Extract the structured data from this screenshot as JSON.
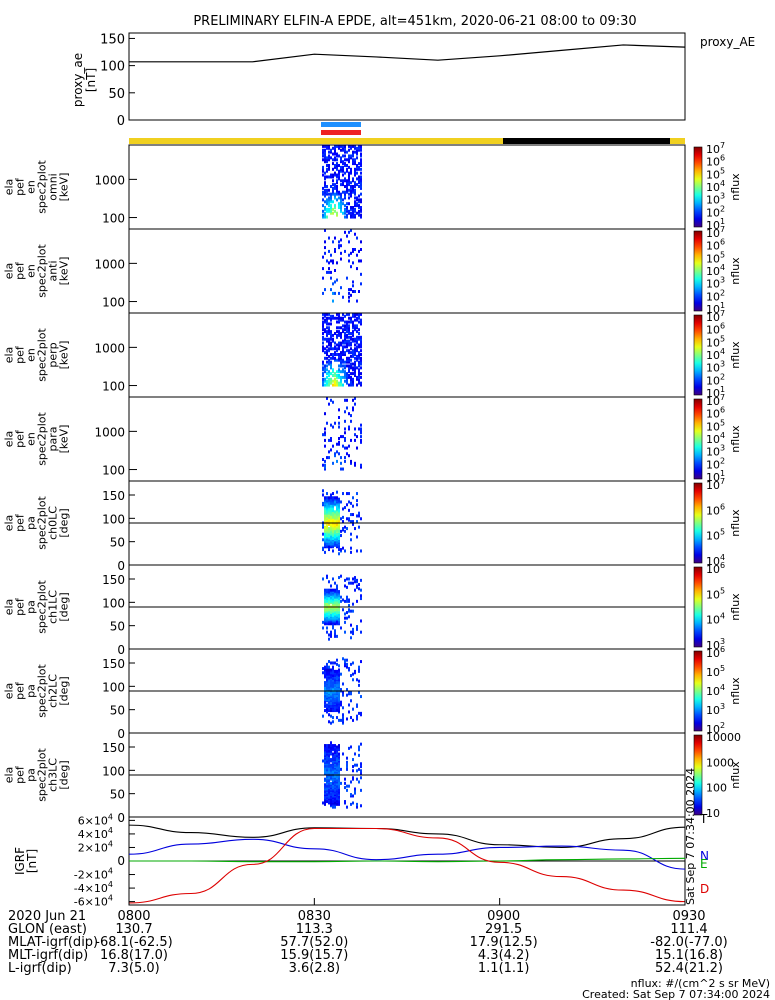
{
  "title": "PRELIMINARY ELFIN-A EPDE, alt=451km, 2020-06-21 08:00 to 09:30",
  "chart_data": [
    {
      "type": "line",
      "name": "proxy_ae",
      "ylabel": "proxy_ae\n[nT]",
      "legend": "proxy_AE",
      "ylim": [
        0,
        160
      ],
      "yticks": [
        0,
        50,
        100,
        150
      ],
      "x_minutes": [
        0,
        20,
        30,
        40,
        50,
        60,
        70,
        80,
        90
      ],
      "values": [
        107,
        107,
        121,
        116,
        110,
        118,
        128,
        138,
        134
      ]
    },
    {
      "type": "heatmap",
      "name": "ela_pef_en_spec2plot_omni",
      "ylabel": "ela\npef\nen\nspec2plot\nomni\n[keV]",
      "scale": "log",
      "yticks": [
        100,
        1000
      ],
      "zlabel": "nflux",
      "zticks": [
        "10^1",
        "10^2",
        "10^3",
        "10^4",
        "10^5",
        "10^6",
        "10^7"
      ]
    },
    {
      "type": "heatmap",
      "name": "ela_pef_en_spec2plot_anti",
      "ylabel": "ela\npef\nen\nspec2plot\nanti\n[keV]",
      "scale": "log",
      "yticks": [
        100,
        1000
      ],
      "zlabel": "nflux",
      "zticks": [
        "10^1",
        "10^2",
        "10^3",
        "10^4",
        "10^5",
        "10^6",
        "10^7"
      ]
    },
    {
      "type": "heatmap",
      "name": "ela_pef_en_spec2plot_perp",
      "ylabel": "ela\npef\nen\nspec2plot\nperp\n[keV]",
      "scale": "log",
      "yticks": [
        100,
        1000
      ],
      "zlabel": "nflux",
      "zticks": [
        "10^1",
        "10^2",
        "10^3",
        "10^4",
        "10^5",
        "10^6",
        "10^7"
      ]
    },
    {
      "type": "heatmap",
      "name": "ela_pef_en_spec2plot_para",
      "ylabel": "ela\npef\nen\nspec2plot\npara\n[keV]",
      "scale": "log",
      "yticks": [
        100,
        1000
      ],
      "zlabel": "nflux",
      "zticks": [
        "10^1",
        "10^2",
        "10^3",
        "10^4",
        "10^5",
        "10^6",
        "10^7"
      ]
    },
    {
      "type": "heatmap",
      "name": "ela_pef_pa_spec2plot_ch0LC",
      "ylabel": "ela\npef\npa\nspec2plot\nch0LC\n[deg]",
      "yticks": [
        0,
        50,
        100,
        150
      ],
      "zlabel": "nflux",
      "zticks": [
        "10^4",
        "10^5",
        "10^6",
        "10^7"
      ]
    },
    {
      "type": "heatmap",
      "name": "ela_pef_pa_spec2plot_ch1LC",
      "ylabel": "ela\npef\npa\nspec2plot\nch1LC\n[deg]",
      "yticks": [
        0,
        50,
        100,
        150
      ],
      "zlabel": "nflux",
      "zticks": [
        "10^3",
        "10^4",
        "10^5",
        "10^6"
      ]
    },
    {
      "type": "heatmap",
      "name": "ela_pef_pa_spec2plot_ch2LC",
      "ylabel": "ela\npef\npa\nspec2plot\nch2LC\n[deg]",
      "yticks": [
        0,
        50,
        100,
        150
      ],
      "zlabel": "nflux",
      "zticks": [
        "10^2",
        "10^3",
        "10^4",
        "10^5",
        "10^6"
      ]
    },
    {
      "type": "heatmap",
      "name": "ela_pef_pa_spec2plot_ch3LC",
      "ylabel": "ela\npef\npa\nspec2plot\nch3LC\n[deg]",
      "yticks": [
        0,
        50,
        100,
        150
      ],
      "zlabel": "nflux",
      "zticks": [
        "10",
        "100",
        "1000",
        "10000"
      ]
    },
    {
      "type": "line",
      "name": "IGRF",
      "ylabel": "IGRF\n[nT]",
      "ylim": [
        -65000,
        65000
      ],
      "yticks": [
        "-6×10^4",
        "-4×10^4",
        "-2×10^4",
        "0",
        "2×10^4",
        "4×10^4",
        "6×10^4"
      ],
      "x_minutes": [
        0,
        10,
        20,
        30,
        40,
        50,
        60,
        70,
        80,
        90
      ],
      "series": [
        {
          "name": "T",
          "color": "#000000",
          "values": [
            53000,
            42000,
            35000,
            49000,
            48000,
            40000,
            24000,
            20000,
            33000,
            50000
          ]
        },
        {
          "name": "N",
          "color": "#0000dd",
          "values": [
            10000,
            25000,
            32000,
            18000,
            2000,
            10000,
            20000,
            22000,
            16000,
            -12000
          ]
        },
        {
          "name": "E",
          "color": "#00aa00",
          "values": [
            0,
            0,
            -1000,
            -1000,
            0,
            -1000,
            0,
            2000,
            3000,
            4000
          ]
        },
        {
          "name": "D",
          "color": "#dd0000",
          "values": [
            -62000,
            -48000,
            -5000,
            48000,
            48000,
            34000,
            -2000,
            -23000,
            -43000,
            -60000
          ]
        }
      ]
    }
  ],
  "x_axis": {
    "ticks": [
      "0800",
      "0830",
      "0900",
      "0930"
    ],
    "row_labels": [
      {
        "label": "2020 Jun 21",
        "values": [
          "0800",
          "0830",
          "0900",
          "0930"
        ]
      },
      {
        "label": "GLON (east)",
        "values": [
          "130.7",
          "113.3",
          "291.5",
          "111.4"
        ]
      },
      {
        "label": "MLAT-igrf(dip)",
        "values": [
          "-68.1(-62.5)",
          "57.7(52.0)",
          "17.9(12.5)",
          "-82.0(-77.0)"
        ]
      },
      {
        "label": "MLT-igrf(dip)",
        "values": [
          "16.8(17.0)",
          "15.9(15.7)",
          "4.3(4.2)",
          "15.1(16.8)"
        ]
      },
      {
        "label": "L-igrf(dip)",
        "values": [
          "7.3(5.0)",
          "3.6(2.8)",
          "1.1(1.1)",
          "52.4(21.2)"
        ]
      }
    ]
  },
  "footer": {
    "units": "nflux: #/(cm^2 s sr MeV)",
    "created": "Created: Sat Sep  7 07:34:00 2024",
    "side_stamp": "Sat Sep  7 07:34:00 2024"
  },
  "colors": {
    "sunlit_bar": "#f0d020",
    "shadow_bar": "#000000",
    "science_zone_blue": "#1e90ff",
    "science_zone_red": "#ee2222"
  }
}
